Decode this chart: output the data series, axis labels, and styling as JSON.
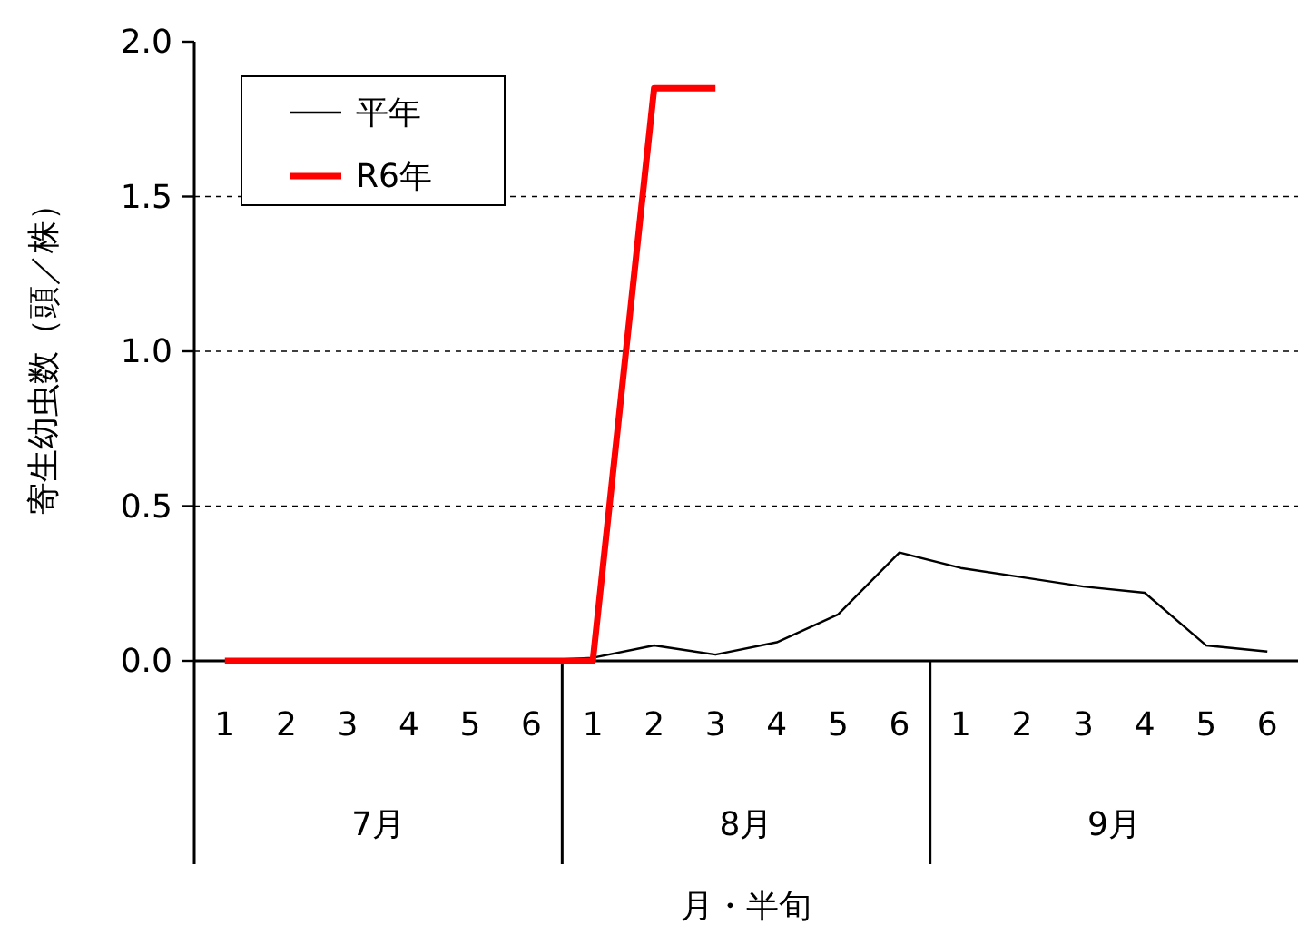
{
  "chart_data": {
    "type": "line",
    "ylabel": "寄生幼虫数（頭／株）",
    "xlabel": "月・半旬",
    "categories": [
      "1",
      "2",
      "3",
      "4",
      "5",
      "6",
      "1",
      "2",
      "3",
      "4",
      "5",
      "6",
      "1",
      "2",
      "3",
      "4",
      "5",
      "6"
    ],
    "annotations": [
      "7月",
      "8月",
      "9月"
    ],
    "series": [
      {
        "name": "平年",
        "color": "#000000",
        "values": [
          0,
          0,
          0,
          0,
          0,
          0,
          0.01,
          0.05,
          0.02,
          0.06,
          0.15,
          0.35,
          0.3,
          0.27,
          0.24,
          0.22,
          0.05,
          0.03
        ]
      },
      {
        "name": "R6年",
        "color": "#ff0000",
        "values": [
          0,
          0,
          0,
          0,
          0,
          0,
          0,
          1.85,
          1.85,
          null,
          null,
          null,
          null,
          null,
          null,
          null,
          null,
          null
        ]
      }
    ],
    "ylim": [
      0,
      2
    ],
    "yticks": [
      {
        "value": 0,
        "label": "0.0"
      },
      {
        "value": 0.5,
        "label": "0.5"
      },
      {
        "value": 1,
        "label": "1.0"
      },
      {
        "value": 1.5,
        "label": "1.5"
      },
      {
        "value": 2,
        "label": "2.0"
      }
    ],
    "grid": "y",
    "legend": "top left"
  }
}
